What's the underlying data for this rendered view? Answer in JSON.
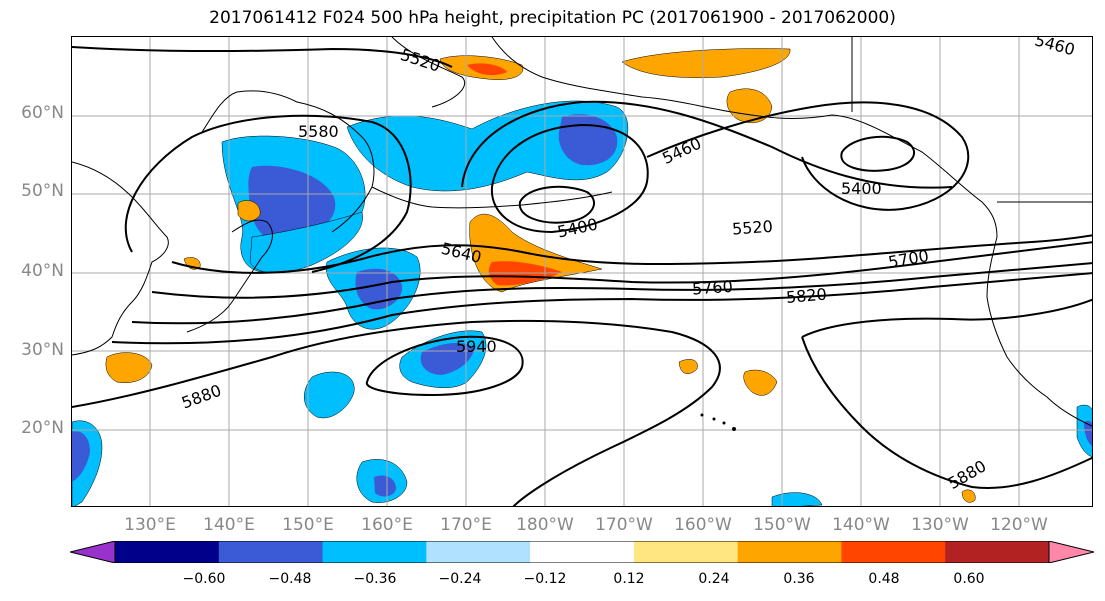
{
  "title": "2017061412 F024 500 hPa height, precipitation PC (2017061900 - 2017062000)",
  "lat_labels": [
    "60°N",
    "50°N",
    "40°N",
    "30°N",
    "20°N"
  ],
  "lon_labels": [
    "130°E",
    "140°E",
    "150°E",
    "160°E",
    "170°E",
    "180°W",
    "170°W",
    "160°W",
    "150°W",
    "140°W",
    "130°W",
    "120°W"
  ],
  "contour_labels": [
    "5520",
    "5580",
    "5460",
    "5460",
    "5400",
    "5400",
    "5520",
    "5640",
    "5700",
    "5760",
    "5820",
    "5940",
    "5880",
    "5880"
  ],
  "colorbar": {
    "tick_labels": [
      "−0.60",
      "−0.48",
      "−0.36",
      "−0.24",
      "−0.12",
      "0.12",
      "0.24",
      "0.36",
      "0.48",
      "0.60"
    ],
    "colors": [
      "#9932CC",
      "#00008B",
      "#3B5BD6",
      "#00BFFF",
      "#B0E2FF",
      "#FFFFFF",
      "#FFE680",
      "#FFA500",
      "#FF4500",
      "#B22222",
      "#FF88AA"
    ]
  },
  "colors": {
    "neg_strong": "#3B5BD6",
    "neg_mid": "#00BFFF",
    "neg_weak": "#B0E2FF",
    "pos_weak": "#FFE680",
    "pos_mid": "#FFA500",
    "pos_strong": "#FF4500",
    "grid": "#aaaaaa",
    "contour": "#000000"
  }
}
